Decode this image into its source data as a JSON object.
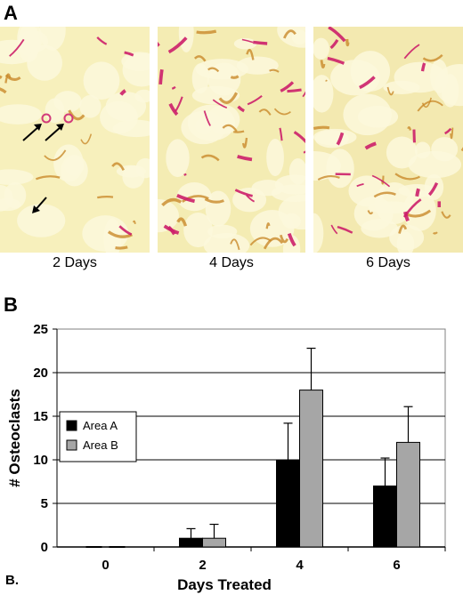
{
  "panel_a": {
    "letter": "A",
    "images": [
      {
        "caption": "2 Days",
        "tint": "#f7f0bc",
        "stain": "#cc1f6a",
        "density": 5,
        "arrows": 3
      },
      {
        "caption": "4 Days",
        "tint": "#f4ecb3",
        "stain": "#cc1f6a",
        "density": 26,
        "arrows": 0
      },
      {
        "caption": "6 Days",
        "tint": "#f3e9b0",
        "stain": "#cc1f6a",
        "density": 20,
        "arrows": 0
      }
    ]
  },
  "panel_b": {
    "letter": "B",
    "footer_label": "B."
  },
  "chart_data": {
    "type": "bar",
    "categories": [
      "0",
      "2",
      "4",
      "6"
    ],
    "series": [
      {
        "name": "Area A",
        "color": "#000000",
        "values": [
          0,
          1,
          10,
          7
        ],
        "errors": [
          0,
          1.1,
          4.2,
          3.2
        ]
      },
      {
        "name": "Area B",
        "color": "#a6a6a6",
        "values": [
          0,
          1,
          18,
          12
        ],
        "errors": [
          0,
          1.6,
          4.8,
          4.1
        ]
      }
    ],
    "xlabel": "Days Treated",
    "ylabel": "# Osteoclasts",
    "ylim": [
      0,
      25
    ],
    "yticks": [
      0,
      5,
      10,
      15,
      20,
      25
    ],
    "grid": true,
    "legend": "left"
  }
}
